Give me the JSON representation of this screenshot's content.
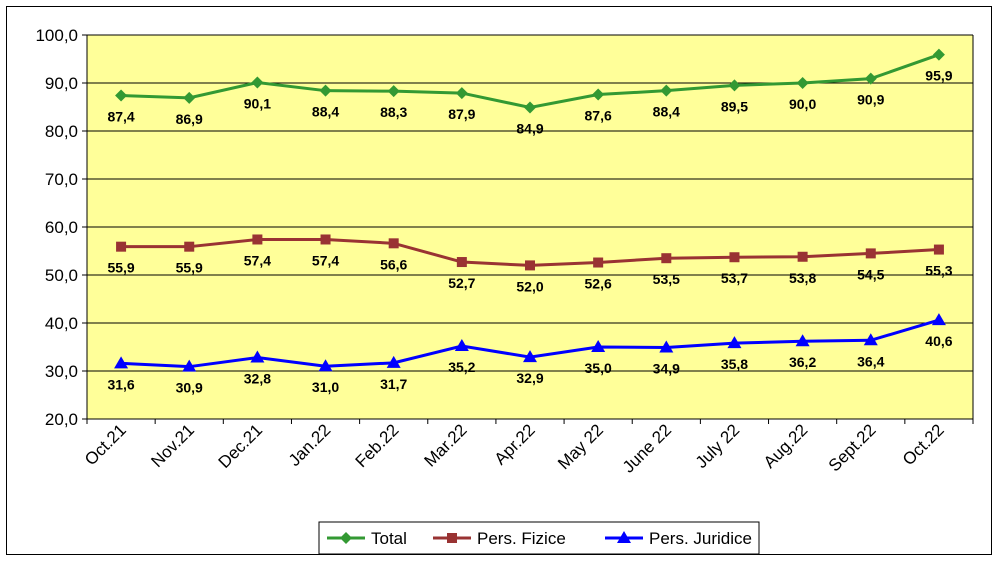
{
  "chart_data": {
    "type": "line",
    "categories": [
      "Oct.21",
      "Nov.21",
      "Dec.21",
      "Jan.22",
      "Feb.22",
      "Mar.22",
      "Apr.22",
      "May 22",
      "June 22",
      "July 22",
      "Aug.22",
      "Sept.22",
      "Oct.22"
    ],
    "ylim": [
      20,
      100
    ],
    "yticks": [
      "20,0",
      "30,0",
      "40,0",
      "50,0",
      "60,0",
      "70,0",
      "80,0",
      "90,0",
      "100,0"
    ],
    "grid": true,
    "legend_position": "bottom",
    "plot_background": "#FFFF99",
    "series": [
      {
        "name": "Total",
        "color": "#339933",
        "marker": "diamond",
        "values": [
          87.4,
          86.9,
          90.1,
          88.4,
          88.3,
          87.9,
          84.9,
          87.6,
          88.4,
          89.5,
          90.0,
          90.9,
          95.9
        ],
        "labels": [
          "87,4",
          "86,9",
          "90,1",
          "88,4",
          "88,3",
          "87,9",
          "84,9",
          "87,6",
          "88,4",
          "89,5",
          "90,0",
          "90,9",
          "95,9"
        ]
      },
      {
        "name": "Pers. Fizice",
        "color": "#993333",
        "marker": "square",
        "values": [
          55.9,
          55.9,
          57.4,
          57.4,
          56.6,
          52.7,
          52.0,
          52.6,
          53.5,
          53.7,
          53.8,
          54.5,
          55.3
        ],
        "labels": [
          "55,9",
          "55,9",
          "57,4",
          "57,4",
          "56,6",
          "52,7",
          "52,0",
          "52,6",
          "53,5",
          "53,7",
          "53,8",
          "54,5",
          "55,3"
        ]
      },
      {
        "name": "Pers. Juridice",
        "color": "#0000FF",
        "marker": "triangle",
        "values": [
          31.6,
          30.9,
          32.8,
          31.0,
          31.7,
          35.2,
          32.9,
          35.0,
          34.9,
          35.8,
          36.2,
          36.4,
          40.6
        ],
        "labels": [
          "31,6",
          "30,9",
          "32,8",
          "31,0",
          "31,7",
          "35,2",
          "32,9",
          "35,0",
          "34,9",
          "35,8",
          "36,2",
          "36,4",
          "40,6"
        ]
      }
    ]
  }
}
